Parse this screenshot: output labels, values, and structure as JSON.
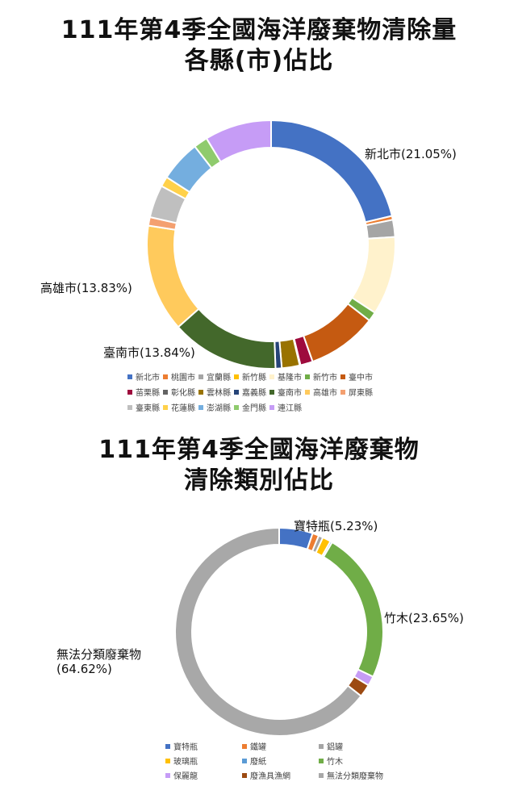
{
  "chart1": {
    "title_line1": "111年第4季全國海洋廢棄物清除量",
    "title_line2": "各縣(市)佔比",
    "callouts": {
      "new_taipei": "新北市(21.05%)",
      "kaohsiung": "高雄市(13.83%)",
      "tainan": "臺南市(13.84%)"
    }
  },
  "chart2": {
    "title_line1": "111年第4季全國海洋廢棄物",
    "title_line2": "清除類別佔比",
    "callouts": {
      "pet": "寶特瓶(5.23%)",
      "bamboo": "竹木(23.65%)",
      "unsorted_line1": "無法分類廢棄物",
      "unsorted_line2": "(64.62%)"
    }
  },
  "chart_data": [
    {
      "type": "pie",
      "title": "111年第4季全國海洋廢棄物清除量各縣(市)佔比",
      "donut": true,
      "legend_position": "bottom",
      "categories": [
        "新北市",
        "桃園市",
        "宜蘭縣",
        "新竹縣",
        "基隆市",
        "新竹市",
        "臺中市",
        "苗栗縣",
        "彰化縣",
        "雲林縣",
        "嘉義縣",
        "臺南市",
        "高雄市",
        "屏東縣",
        "臺東縣",
        "花蓮縣",
        "澎湖縣",
        "金門縣",
        "連江縣"
      ],
      "values": [
        21.05,
        0.5,
        2.2,
        0.0,
        10.1,
        1.2,
        9.0,
        1.6,
        0.1,
        2.3,
        0.8,
        13.84,
        13.83,
        1.1,
        4.2,
        1.3,
        5.3,
        1.8,
        8.6
      ],
      "colors": [
        "#4472C4",
        "#ED7D31",
        "#A5A5A5",
        "#FFC000",
        "#FFF2CC",
        "#70AD47",
        "#C55A11",
        "#9E0B3D",
        "#636363",
        "#997300",
        "#264478",
        "#43682B",
        "#FFCA5C",
        "#F4A070",
        "#BFBFBF",
        "#FFD14A",
        "#74AEDF",
        "#8FCB6D",
        "#C69CF6"
      ]
    },
    {
      "type": "pie",
      "title": "111年第4季全國海洋廢棄物清除類別佔比",
      "donut": true,
      "legend_position": "bottom",
      "categories": [
        "寶特瓶",
        "鐵罐",
        "鋁罐",
        "玻璃瓶",
        "廢紙",
        "竹木",
        "保麗龍",
        "廢漁具漁網",
        "無法分類廢棄物"
      ],
      "values": [
        5.23,
        1.0,
        0.7,
        1.3,
        0.3,
        23.65,
        1.5,
        2.0,
        64.62
      ],
      "colors": [
        "#4472C4",
        "#ED7D31",
        "#A5A5A5",
        "#FFC000",
        "#5B9BD5",
        "#70AD47",
        "#C69CF6",
        "#9C4A12",
        "#A8A8A8"
      ]
    }
  ]
}
